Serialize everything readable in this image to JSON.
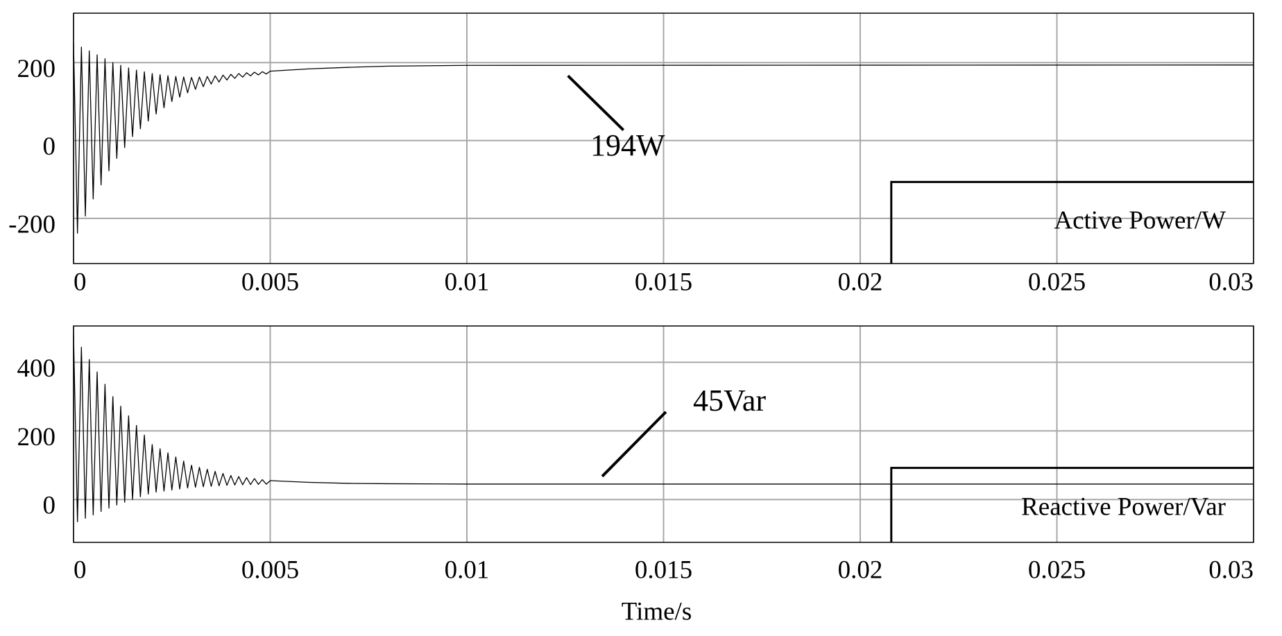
{
  "chart_data": [
    {
      "type": "line",
      "x": [
        0,
        0.0001,
        0.0002,
        0.0003,
        0.0004,
        0.0005,
        0.0006,
        0.0007,
        0.0008,
        0.0009,
        0.001,
        0.0011,
        0.0012,
        0.0013,
        0.0014,
        0.0015,
        0.0016,
        0.0017,
        0.0018,
        0.0019,
        0.002,
        0.0021,
        0.0022,
        0.0023,
        0.0024,
        0.0025,
        0.0026,
        0.0027,
        0.0028,
        0.0029,
        0.003,
        0.0031,
        0.0032,
        0.0033,
        0.0034,
        0.0035,
        0.0036,
        0.0037,
        0.0038,
        0.0039,
        0.004,
        0.0041,
        0.0042,
        0.0043,
        0.0044,
        0.0045,
        0.0046,
        0.0047,
        0.0048,
        0.0049,
        0.005,
        0.006,
        0.007,
        0.008,
        0.01,
        0.03
      ],
      "series": [
        {
          "name": "Active Power/W",
          "color": "#000000",
          "values": [
            250,
            -238,
            240,
            -194,
            230,
            -150,
            220,
            -114,
            210,
            -78,
            200,
            -46,
            193.2,
            -18,
            186.4,
            10,
            180.8,
            30,
            176.4,
            50,
            172,
            68,
            169.2,
            84,
            166.4,
            100,
            164.4,
            111.2,
            163.2,
            122.4,
            162,
            131.4,
            163.2,
            138.2,
            164.4,
            145,
            166,
            150.2,
            168,
            155.4,
            170,
            159.6,
            172,
            162.8,
            174,
            166,
            175.6,
            168.4,
            176.8,
            170.8,
            178,
            184,
            188,
            191,
            193,
            194
          ]
        }
      ],
      "xlim": [
        0,
        0.03
      ],
      "xticks": [
        0,
        0.005,
        0.01,
        0.015,
        0.02,
        0.025,
        0.03
      ],
      "ylim": [
        -316,
        327
      ],
      "yticks": [
        -200,
        0,
        200
      ],
      "grid": true,
      "legend": "lower right",
      "annotations": [
        {
          "text": "194W"
        }
      ]
    },
    {
      "type": "line",
      "x": [
        0,
        0.0001,
        0.0002,
        0.0003,
        0.0004,
        0.0005,
        0.0006,
        0.0007,
        0.0008,
        0.0009,
        0.001,
        0.0011,
        0.0012,
        0.0013,
        0.0014,
        0.0015,
        0.0016,
        0.0017,
        0.0018,
        0.0019,
        0.002,
        0.0021,
        0.0022,
        0.0023,
        0.0024,
        0.0025,
        0.0026,
        0.0027,
        0.0028,
        0.0029,
        0.003,
        0.0031,
        0.0032,
        0.0033,
        0.0034,
        0.0035,
        0.0036,
        0.0037,
        0.0038,
        0.0039,
        0.004,
        0.0041,
        0.0042,
        0.0043,
        0.0044,
        0.0045,
        0.0046,
        0.0047,
        0.0048,
        0.0049,
        0.005,
        0.006,
        0.007,
        0.008,
        0.01,
        0.03
      ],
      "series": [
        {
          "name": "Reactive Power/Var",
          "color": "#000000",
          "values": [
            480,
            -65,
            444,
            -55,
            408,
            -45,
            372,
            -35,
            336,
            -25,
            300,
            -16,
            272,
            -8,
            244,
            0,
            216,
            8,
            188,
            16,
            160,
            21.5,
            148,
            24.5,
            136,
            27.5,
            124,
            30.5,
            112,
            33.5,
            100,
            35.7,
            94,
            37.1,
            88,
            38.5,
            82,
            39.9,
            76,
            41.3,
            70,
            42.3,
            67,
            42.9,
            64,
            43.5,
            61,
            44.1,
            58,
            44.7,
            55,
            50,
            47,
            46,
            45,
            45
          ]
        }
      ],
      "xlim": [
        0,
        0.03
      ],
      "xticks": [
        0,
        0.005,
        0.01,
        0.015,
        0.02,
        0.025,
        0.03
      ],
      "ylim": [
        -125,
        506
      ],
      "yticks": [
        0,
        200,
        400
      ],
      "grid": true,
      "legend": "lower right",
      "xlabel": "Time/s",
      "annotations": [
        {
          "text": "45Var"
        }
      ]
    }
  ]
}
